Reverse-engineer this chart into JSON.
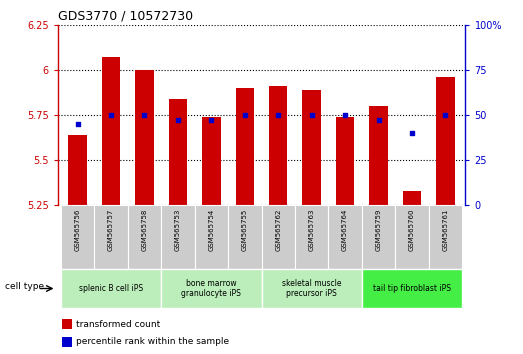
{
  "title": "GDS3770 / 10572730",
  "samples": [
    "GSM565756",
    "GSM565757",
    "GSM565758",
    "GSM565753",
    "GSM565754",
    "GSM565755",
    "GSM565762",
    "GSM565763",
    "GSM565764",
    "GSM565759",
    "GSM565760",
    "GSM565761"
  ],
  "transformed_count": [
    5.64,
    6.07,
    6.0,
    5.84,
    5.74,
    5.9,
    5.91,
    5.89,
    5.74,
    5.8,
    5.33,
    5.96
  ],
  "percentile_rank": [
    45,
    50,
    50,
    47,
    47,
    50,
    50,
    50,
    50,
    47,
    40,
    50
  ],
  "ylim_left": [
    5.25,
    6.25
  ],
  "ylim_right": [
    0,
    100
  ],
  "yticks_left": [
    5.25,
    5.5,
    5.75,
    6.0,
    6.25
  ],
  "yticks_right": [
    0,
    25,
    50,
    75,
    100
  ],
  "ytick_labels_left": [
    "5.25",
    "5.5",
    "5.75",
    "6",
    "6.25"
  ],
  "ytick_labels_right": [
    "0",
    "25",
    "50",
    "75",
    "100%"
  ],
  "bar_color": "#cc0000",
  "dot_color": "#0000cc",
  "cell_type_groups": [
    {
      "label": "splenic B cell iPS",
      "indices": [
        0,
        1,
        2
      ],
      "color": "#bbeebb"
    },
    {
      "label": "bone marrow\ngranulocyte iPS",
      "indices": [
        3,
        4,
        5
      ],
      "color": "#bbeebb"
    },
    {
      "label": "skeletal muscle\nprecursor iPS",
      "indices": [
        6,
        7,
        8
      ],
      "color": "#bbeebb"
    },
    {
      "label": "tail tip fibroblast iPS",
      "indices": [
        9,
        10,
        11
      ],
      "color": "#44ee44"
    }
  ],
  "bar_width": 0.55,
  "sample_box_color": "#cccccc",
  "grid_linestyle": "dotted",
  "left_axis_color": "#cc0000",
  "right_axis_color": "#0000cc"
}
